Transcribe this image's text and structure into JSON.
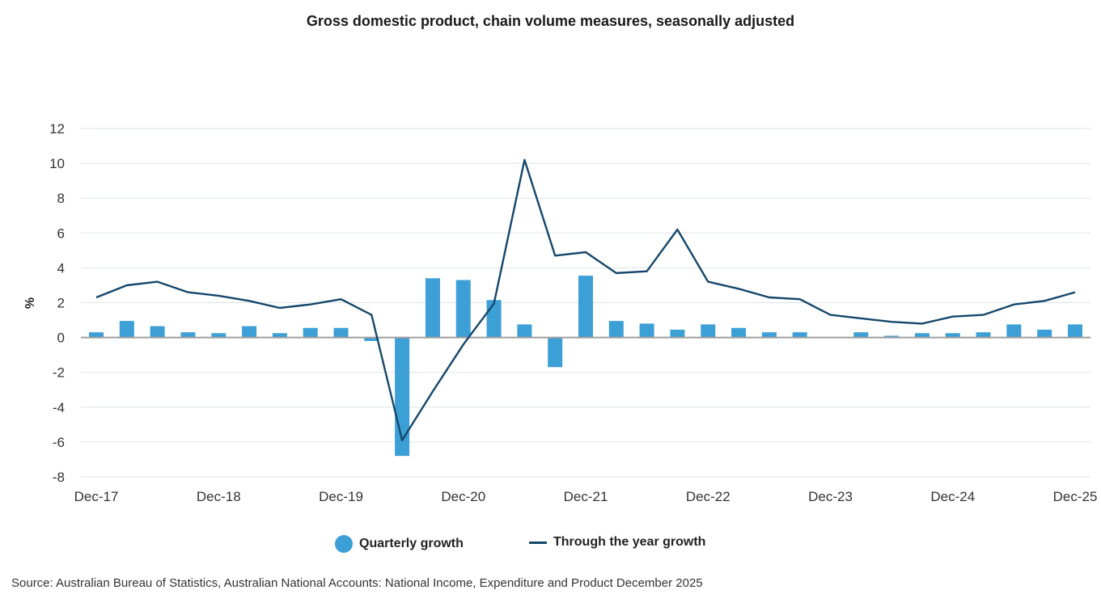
{
  "title": "Gross domestic product, chain volume measures, seasonally adjusted",
  "source": "Source: Australian Bureau of Statistics, Australian National Accounts: National Income, Expenditure and Product December 2025",
  "colors": {
    "bar": "#3c9fd6",
    "line": "#15476b",
    "grid": "#dde3ea",
    "zero": "#9e9e9e"
  },
  "chart_data": {
    "type": "bar+line",
    "ylabel": "%",
    "ylim": [
      -8,
      12
    ],
    "yticks": [
      12,
      10,
      8,
      6,
      4,
      2,
      0,
      -2,
      -4,
      -6,
      -8
    ],
    "grid": true,
    "legend_position": "bottom",
    "categories": [
      "Dec-17",
      "Mar-18",
      "Jun-18",
      "Sep-18",
      "Dec-18",
      "Mar-19",
      "Jun-19",
      "Sep-19",
      "Dec-19",
      "Mar-20",
      "Jun-20",
      "Sep-20",
      "Dec-20",
      "Mar-21",
      "Jun-21",
      "Sep-21",
      "Dec-21",
      "Mar-22",
      "Jun-22",
      "Sep-22",
      "Dec-22",
      "Mar-23",
      "Jun-23",
      "Sep-23",
      "Dec-23",
      "Mar-24",
      "Jun-24",
      "Sep-24",
      "Dec-24",
      "Mar-25",
      "Jun-25",
      "Sep-25",
      "Dec-25"
    ],
    "xtick_labels": [
      "Dec-17",
      "Dec-18",
      "Dec-19",
      "Dec-20",
      "Dec-21",
      "Dec-22",
      "Dec-23",
      "Dec-24",
      "Dec-25"
    ],
    "series": [
      {
        "name": "Quarterly growth",
        "type": "bar",
        "values": [
          0.3,
          0.95,
          0.65,
          0.3,
          0.25,
          0.65,
          0.25,
          0.55,
          0.55,
          -0.2,
          -6.8,
          3.4,
          3.3,
          2.15,
          0.75,
          -1.7,
          3.55,
          0.95,
          0.8,
          0.45,
          0.75,
          0.55,
          0.3,
          0.3,
          0.0,
          0.3,
          0.1,
          0.25,
          0.25,
          0.3,
          0.75,
          0.45,
          0.75
        ]
      },
      {
        "name": "Through the year growth",
        "type": "line",
        "values": [
          2.3,
          3.0,
          3.2,
          2.6,
          2.4,
          2.1,
          1.7,
          1.9,
          2.2,
          1.3,
          -5.9,
          -3.1,
          -0.4,
          1.95,
          10.2,
          4.7,
          4.9,
          3.7,
          3.8,
          6.2,
          3.2,
          2.8,
          2.3,
          2.2,
          1.3,
          1.1,
          0.9,
          0.8,
          1.2,
          1.3,
          1.9,
          2.1,
          2.6
        ]
      }
    ]
  }
}
